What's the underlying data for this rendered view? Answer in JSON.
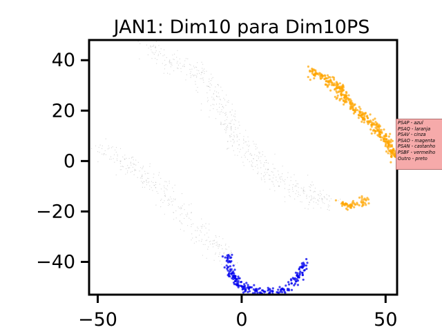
{
  "chart_data": {
    "type": "scatter",
    "title": "JAN1: Dim10 para Dim10PS",
    "xlabel": "",
    "ylabel": "",
    "xlim": [
      -53,
      54
    ],
    "ylim": [
      -53,
      48
    ],
    "xticks": [
      -50,
      0,
      50
    ],
    "yticks": [
      40,
      20,
      0,
      -20,
      -40
    ],
    "xtick_labels": [
      "−50",
      "0",
      "50"
    ],
    "ytick_labels": [
      "40",
      "20",
      "0",
      "−20",
      "−40"
    ],
    "grid": false,
    "legend_position": "right",
    "legend": [
      "PSAP - azul",
      "PSAQ - laranja",
      "PSAV - cinza",
      "PSAO - magenta",
      "PSAN - castanho",
      "PSBF - vermelho",
      "Outro - preto"
    ],
    "series": [
      {
        "color": "#a9a9a9",
        "marker_size": 0.6,
        "opacity": 0.5,
        "segments": [
          [
            [
              -33,
              46
            ],
            [
              -25,
              40
            ],
            [
              -16,
              36
            ],
            [
              -10,
              28
            ],
            [
              -6,
              18
            ],
            [
              -2,
              10
            ],
            [
              3,
              2
            ],
            [
              9,
              -4
            ],
            [
              16,
              -10
            ],
            [
              24,
              -14
            ],
            [
              31,
              -16
            ]
          ],
          [
            [
              -50,
              5
            ],
            [
              -45,
              3
            ],
            [
              -38,
              -3
            ],
            [
              -31,
              -8
            ],
            [
              -25,
              -15
            ],
            [
              -19,
              -22
            ],
            [
              -13,
              -30
            ],
            [
              -9,
              -34
            ],
            [
              -5,
              -38
            ]
          ]
        ],
        "spread": 2.2,
        "count_per_segment": [
          520,
          300
        ]
      },
      {
        "color": "#ffa500",
        "marker_size": 1.6,
        "opacity": 0.7,
        "segments": [
          [
            [
              24,
              36
            ],
            [
              30,
              32
            ],
            [
              34,
              28
            ],
            [
              38,
              22
            ],
            [
              42,
              18
            ],
            [
              46,
              14
            ],
            [
              50,
              9
            ],
            [
              53,
              1
            ]
          ],
          [
            [
              35,
              -17
            ],
            [
              38,
              -18
            ],
            [
              41,
              -17
            ],
            [
              43,
              -15
            ]
          ]
        ],
        "spread": 0.9,
        "count_per_segment": [
          380,
          60
        ]
      },
      {
        "color": "#0000ee",
        "marker_size": 1.6,
        "opacity": 0.75,
        "segments": [
          [
            [
              -5,
              -37
            ],
            [
              -4,
              -43
            ],
            [
              -2,
              -47
            ],
            [
              0,
              -50
            ],
            [
              4,
              -51
            ],
            [
              10,
              -52
            ],
            [
              16,
              -51
            ],
            [
              19,
              -47
            ],
            [
              21,
              -43
            ],
            [
              22,
              -39
            ]
          ]
        ],
        "spread": 0.8,
        "count_per_segment": [
          230
        ]
      }
    ]
  }
}
